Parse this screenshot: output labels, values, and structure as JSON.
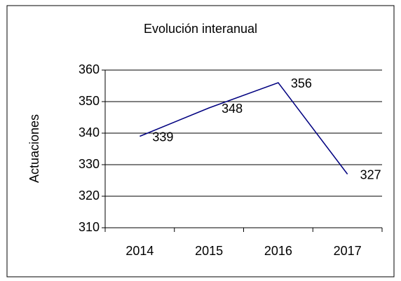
{
  "chart_data": {
    "type": "line",
    "title": "Evolución interanual",
    "y_label": "Actuaciones",
    "categories": [
      "2014",
      "2015",
      "2016",
      "2017"
    ],
    "series": [
      {
        "name": "Actuaciones",
        "color": "#000080",
        "values": [
          339,
          348,
          356,
          327
        ]
      }
    ],
    "ylim": [
      310,
      360
    ],
    "yticks": [
      310,
      320,
      330,
      340,
      350,
      360
    ],
    "grid": true
  }
}
